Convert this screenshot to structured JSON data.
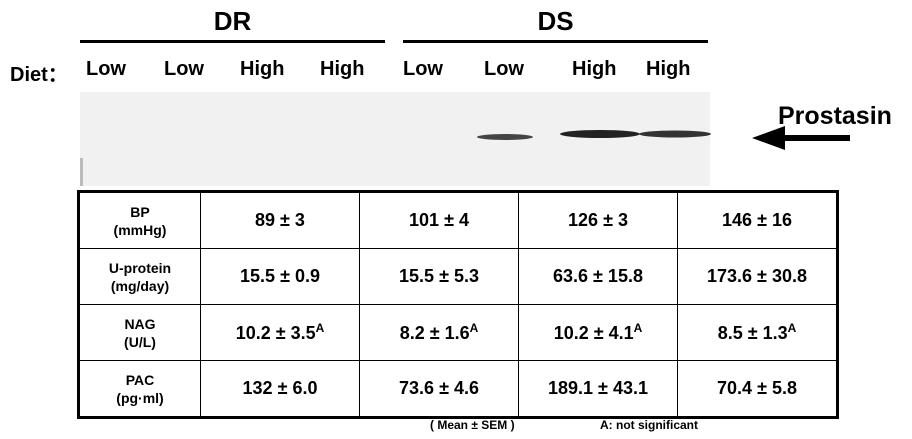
{
  "header": {
    "groups": [
      {
        "label": "DR"
      },
      {
        "label": "DS"
      }
    ],
    "diet_label": "Diet：",
    "diets": [
      "Low",
      "Low",
      "High",
      "High",
      "Low",
      "Low",
      "High",
      "High"
    ]
  },
  "blot": {
    "label": "Prostasin"
  },
  "table": {
    "rows": [
      {
        "label": "BP",
        "unit": "(mmHg)",
        "cells": [
          "89 ± 3",
          "101 ± 4",
          "126 ± 3",
          "146 ± 16"
        ]
      },
      {
        "label": "U-protein",
        "unit": "(mg/day)",
        "cells": [
          "15.5 ± 0.9",
          "15.5 ± 5.3",
          "63.6 ± 15.8",
          "173.6 ± 30.8"
        ]
      },
      {
        "label": "NAG",
        "unit": "(U/L)",
        "cells": [
          "10.2 ± 3.5",
          "8.2 ± 1.6",
          "10.2 ± 4.1",
          "8.5 ± 1.3"
        ],
        "marks": [
          "A",
          "A",
          "A",
          "A"
        ]
      },
      {
        "label": "PAC",
        "unit": "(pg·ml)",
        "cells": [
          "132 ± 6.0",
          "73.6 ± 4.6",
          "189.1 ± 43.1",
          "70.4 ± 5.8"
        ]
      }
    ]
  },
  "footnote": {
    "stats": "( Mean ± SEM )",
    "note": "A:  not significant"
  }
}
